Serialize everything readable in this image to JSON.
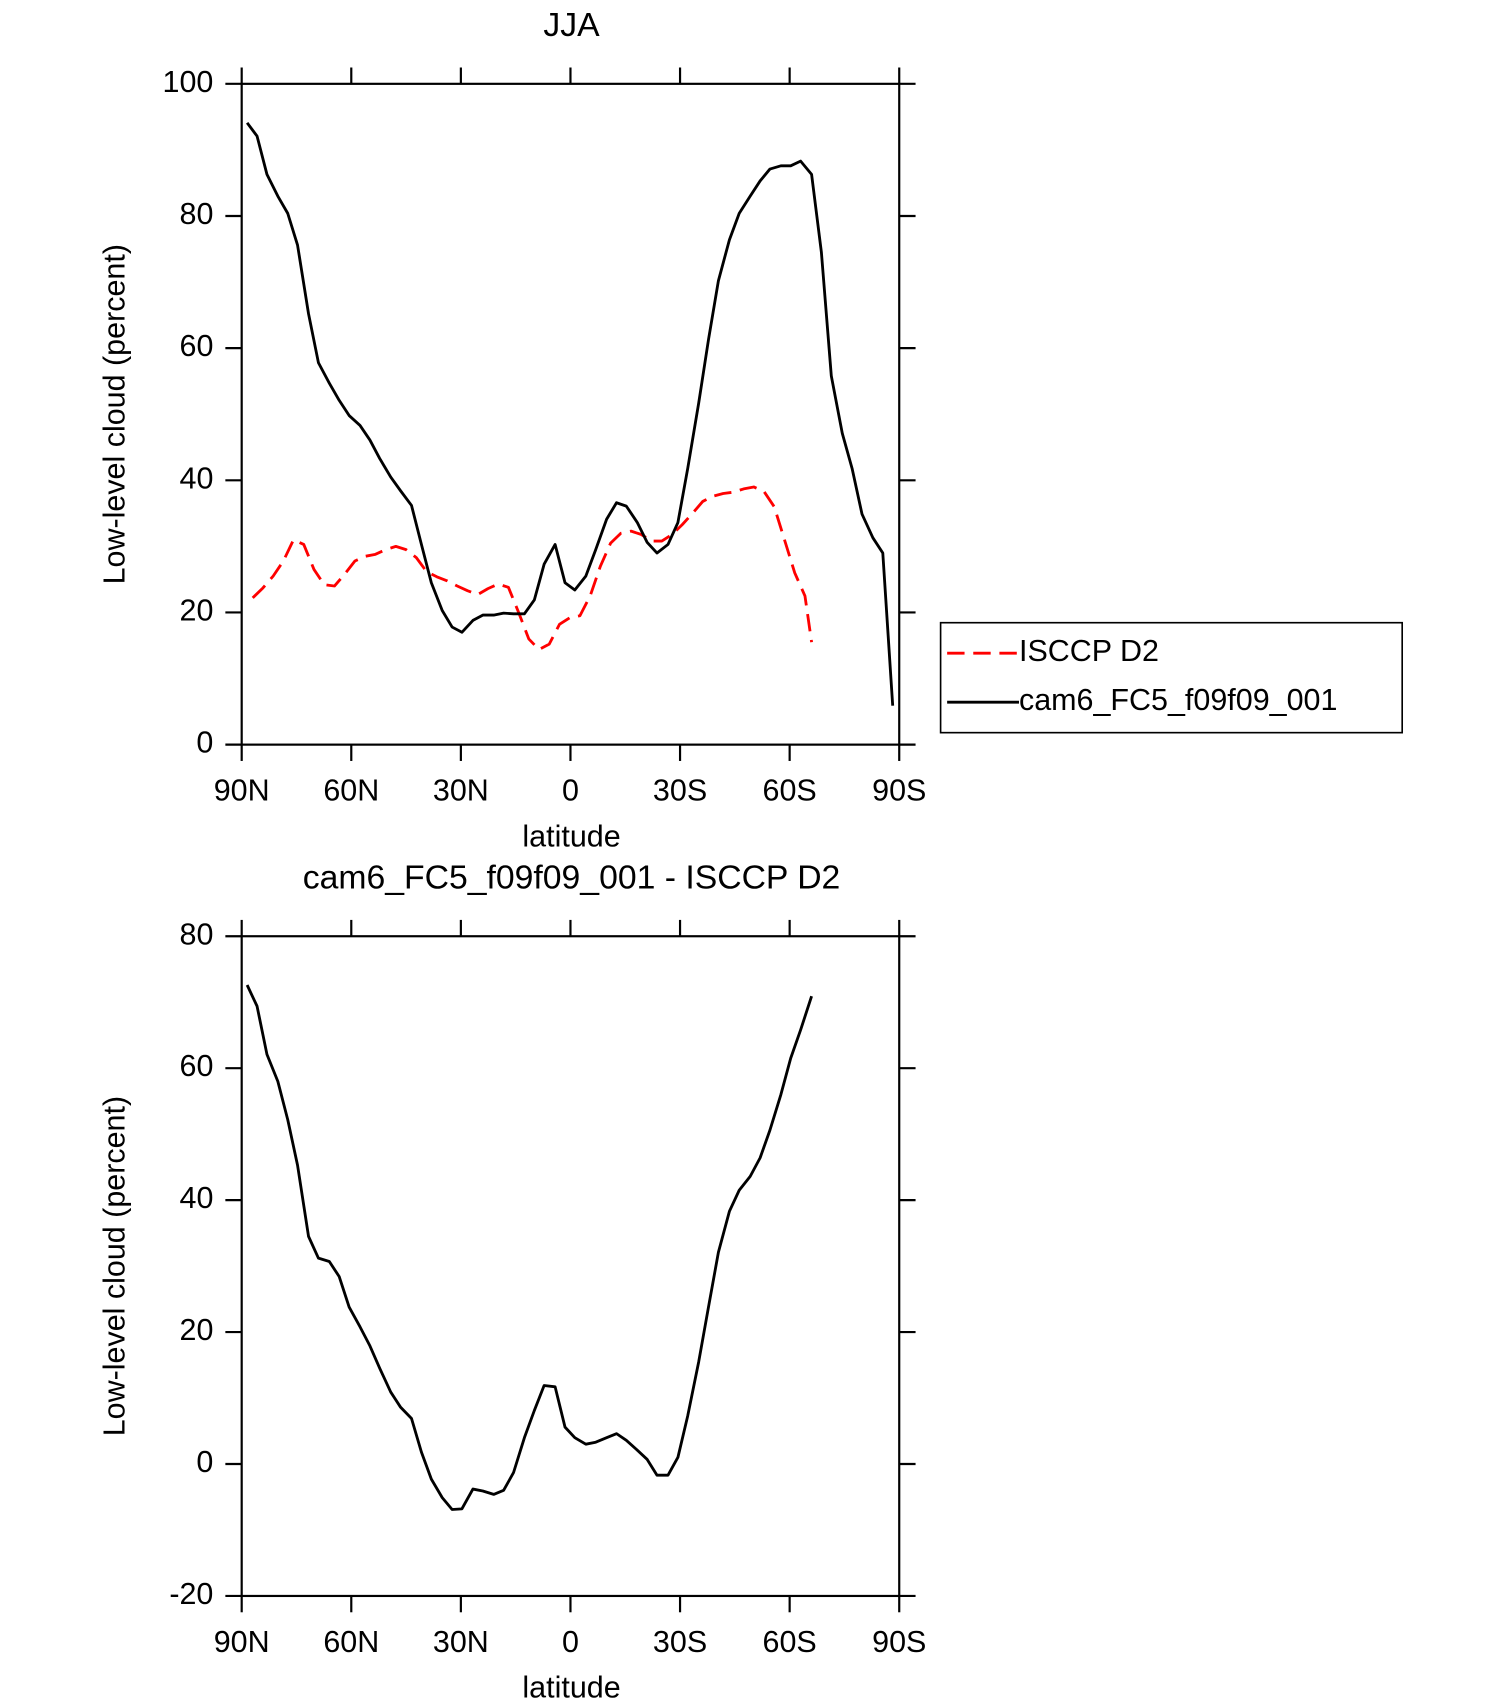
{
  "chart_data": [
    {
      "type": "line",
      "title": "JJA",
      "x_label": "latitude",
      "y_label": "Low-level cloud (percent)",
      "xlim": [
        90,
        -90
      ],
      "xticks": [
        {
          "value": 90,
          "label": "90N"
        },
        {
          "value": 60,
          "label": "60N"
        },
        {
          "value": 30,
          "label": "30N"
        },
        0,
        {
          "value": -30,
          "label": "30S"
        },
        {
          "value": -60,
          "label": "60S"
        },
        {
          "value": -90,
          "label": "90S"
        }
      ],
      "ylim": [
        0,
        100
      ],
      "yticks": [
        0,
        20,
        40,
        60,
        80,
        100
      ],
      "legend": "right",
      "series": [
        {
          "name": "ISCCP D2",
          "color": "#ff0000",
          "line_style": "dashed",
          "x": [
            87,
            84.2,
            81.4,
            78.6,
            75.8,
            73,
            70.2,
            67.4,
            64.6,
            61.8,
            59,
            56.2,
            53.4,
            50.6,
            47.8,
            45,
            42.2,
            39.4,
            36.6,
            33.8,
            31,
            28.2,
            25.4,
            22.6,
            19.8,
            17,
            14.2,
            11.4,
            8.6,
            5.8,
            3,
            0.2,
            -2.6,
            -5.4,
            -8.2,
            -11,
            -13.8,
            -16.6,
            -19.4,
            -22.2,
            -25,
            -27.8,
            -30.6,
            -33.4,
            -36.2,
            -39,
            -41.8,
            -44.6,
            -47.4,
            -50.2,
            -53,
            -55.8,
            -58.6,
            -61.4,
            -64.2,
            -66
          ],
          "values": [
            22.2,
            23.7,
            25.5,
            27.8,
            31,
            30.3,
            26.5,
            24.2,
            24,
            25.8,
            27.8,
            28.5,
            28.8,
            29.5,
            30,
            29.5,
            28.3,
            26.2,
            25.4,
            24.8,
            24,
            23.3,
            22.7,
            23.6,
            24.3,
            23.8,
            20,
            16,
            14.4,
            15.2,
            18.2,
            19.2,
            19.5,
            22.5,
            27,
            30.5,
            32,
            32.3,
            31.8,
            30.8,
            30.8,
            31.8,
            33.3,
            35,
            36.8,
            37.6,
            38,
            38.2,
            38.7,
            39,
            38.3,
            36,
            31,
            26,
            22.5,
            15.5
          ]
        },
        {
          "name": "cam6_FC5_f09f09_001",
          "color": "#000000",
          "line_style": "solid",
          "x": [
            88.5,
            85.8,
            83.1,
            80.1,
            77.4,
            74.7,
            71.7,
            69,
            66,
            63.3,
            60.6,
            57.6,
            54.9,
            52.2,
            49.2,
            46.5,
            43.5,
            40.8,
            38.1,
            35.1,
            32.4,
            29.7,
            26.7,
            24,
            21,
            18.3,
            15.6,
            12.6,
            9.9,
            7.2,
            4.2,
            1.5,
            -1.2,
            -4.2,
            -6.9,
            -9.9,
            -12.6,
            -15.3,
            -18.3,
            -21,
            -23.7,
            -26.7,
            -29.4,
            -32.1,
            -35.1,
            -37.8,
            -40.5,
            -43.5,
            -46.2,
            -49.2,
            -51.9,
            -54.6,
            -57.6,
            -60.3,
            -63,
            -66,
            -68.7,
            -71.4,
            -74.4,
            -77.1,
            -79.8,
            -82.8,
            -85.5,
            -88.2
          ],
          "values": [
            94.1,
            92.1,
            86.3,
            83,
            80.4,
            75.6,
            65.2,
            57.8,
            54.7,
            52.1,
            49.8,
            48.3,
            46.1,
            43.3,
            40.5,
            38.4,
            36.2,
            30.3,
            24.5,
            20.3,
            17.8,
            17,
            18.8,
            19.6,
            19.6,
            19.9,
            19.8,
            19.8,
            21.9,
            27.3,
            30.3,
            24.5,
            23.4,
            25.5,
            29.5,
            34.1,
            36.6,
            36.1,
            33.6,
            30.6,
            29,
            30.3,
            33.6,
            41.8,
            51.7,
            61.3,
            70.2,
            76.4,
            80.4,
            83,
            85.3,
            87.1,
            87.6,
            87.6,
            88.3,
            86.3,
            74.5,
            55.8,
            47.1,
            41.8,
            34.9,
            31.3,
            29,
            5.9
          ]
        }
      ]
    },
    {
      "type": "line",
      "title": "cam6_FC5_f09f09_001 - ISCCP D2",
      "x_label": "latitude",
      "y_label": "Low-level cloud (percent)",
      "xlim": [
        90,
        -90
      ],
      "xticks": [
        {
          "value": 90,
          "label": "90N"
        },
        {
          "value": 60,
          "label": "60N"
        },
        {
          "value": 30,
          "label": "30N"
        },
        0,
        {
          "value": -30,
          "label": "30S"
        },
        {
          "value": -60,
          "label": "60S"
        },
        {
          "value": -90,
          "label": "90S"
        }
      ],
      "ylim": [
        -20,
        80
      ],
      "yticks": [
        -20,
        0,
        20,
        40,
        60,
        80
      ],
      "series": [
        {
          "color": "#000000",
          "line_style": "solid",
          "x": [
            88.5,
            85.8,
            83.1,
            80.1,
            77.4,
            74.7,
            71.7,
            69,
            66,
            63.3,
            60.6,
            57.6,
            54.9,
            52.2,
            49.2,
            46.5,
            43.5,
            40.8,
            38.1,
            35.1,
            32.4,
            29.7,
            26.7,
            24,
            21,
            18.3,
            15.6,
            12.6,
            9.9,
            7.2,
            4.2,
            1.5,
            -1.2,
            -4.2,
            -6.9,
            -9.9,
            -12.6,
            -15.3,
            -18.3,
            -21,
            -23.7,
            -26.7,
            -29.4,
            -32.1,
            -35.1,
            -37.8,
            -40.5,
            -43.5,
            -46.2,
            -49.2,
            -51.9,
            -54.6,
            -57.6,
            -60.3,
            -63,
            -66
          ],
          "values": [
            72.6,
            69.4,
            62.1,
            58,
            52.2,
            45.3,
            34.5,
            31.2,
            30.7,
            28.4,
            23.8,
            20.8,
            17.9,
            14.5,
            10.9,
            8.6,
            6.9,
            1.8,
            -2.3,
            -5.1,
            -6.9,
            -6.8,
            -3.8,
            -4.1,
            -4.6,
            -4,
            -1.3,
            4,
            8.1,
            11.9,
            11.7,
            5.6,
            4,
            3,
            3.3,
            4,
            4.6,
            3.6,
            2.1,
            0.7,
            -1.7,
            -1.7,
            1,
            7.3,
            15.5,
            23.8,
            32.1,
            38.3,
            41.5,
            43.6,
            46.4,
            50.6,
            56,
            61.5,
            65.8,
            70.9
          ]
        }
      ]
    }
  ]
}
